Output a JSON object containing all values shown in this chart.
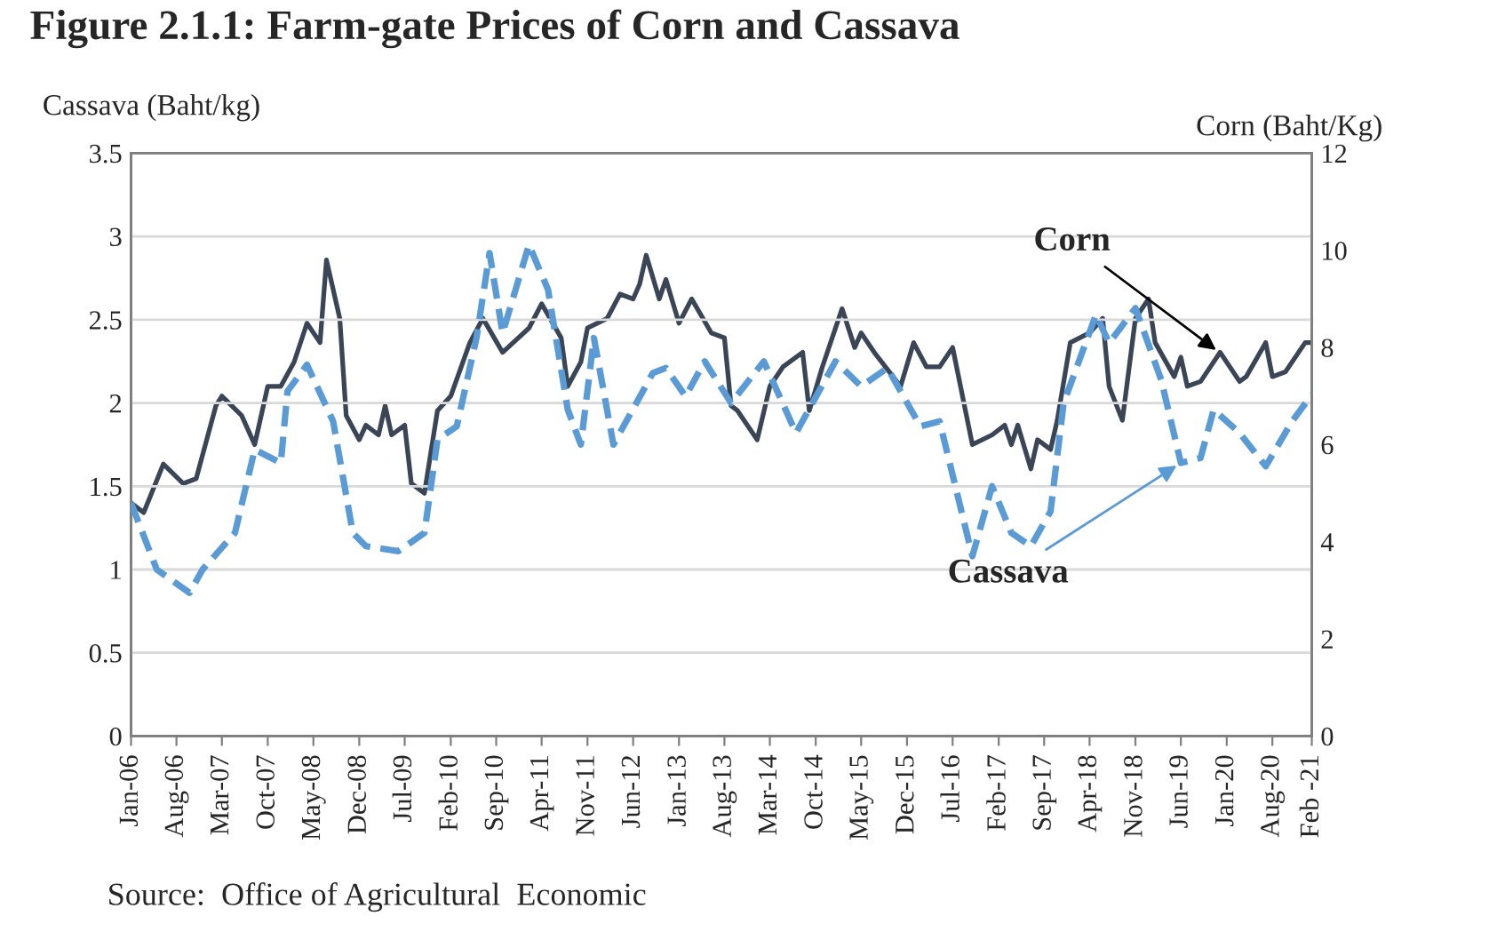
{
  "chart_data": {
    "type": "line",
    "title": "Figure 2.1.1: Farm-gate Prices of Corn and Cassava",
    "ylabel": "Cassava (Baht/kg)",
    "y2label": "Corn (Baht/Kg)",
    "annotations": [
      {
        "text": "Corn",
        "x": "2019-12",
        "y": 2.3
      },
      {
        "text": "Cassava",
        "x": "2019-06",
        "y": 1.64
      },
      "Source:  Office of Agricultural  Economic"
    ],
    "series": [
      {
        "color": "#5b9bd5",
        "line_style": "dashed",
        "x": [
          "2006-01",
          "2006-05",
          "2006-10",
          "2006-12",
          "2007-05",
          "2007-08",
          "2007-12",
          "2008-01",
          "2008-04",
          "2008-08",
          "2008-11",
          "2009-01",
          "2009-06",
          "2009-10",
          "2009-12",
          "2010-03",
          "2010-06",
          "2010-08",
          "2010-10",
          "2011-02",
          "2011-05",
          "2011-08",
          "2011-10",
          "2011-12",
          "2012-03",
          "2012-09",
          "2012-11",
          "2013-02",
          "2013-05",
          "2013-09",
          "2014-02",
          "2014-07",
          "2015-01",
          "2015-05",
          "2015-09",
          "2016-02",
          "2016-05",
          "2016-10",
          "2017-01",
          "2017-04",
          "2017-07",
          "2017-10",
          "2017-12",
          "2018-05",
          "2018-07",
          "2018-11",
          "2019-03",
          "2019-06",
          "2019-09",
          "2019-11",
          "2020-03",
          "2020-07",
          "2020-11",
          "2021-02"
        ],
        "values": [
          1.4,
          1.0,
          0.86,
          1.0,
          1.22,
          1.72,
          1.64,
          2.07,
          2.23,
          1.89,
          1.22,
          1.14,
          1.11,
          1.22,
          1.78,
          1.86,
          2.39,
          2.9,
          2.42,
          2.95,
          2.68,
          1.96,
          1.75,
          2.39,
          1.75,
          2.18,
          2.21,
          2.04,
          2.25,
          2.0,
          2.25,
          1.82,
          2.25,
          2.1,
          2.21,
          1.86,
          1.89,
          1.08,
          1.5,
          1.22,
          1.14,
          1.35,
          2.0,
          2.53,
          2.36,
          2.57,
          2.14,
          1.64,
          1.67,
          1.96,
          1.82,
          1.62,
          1.89,
          2.05
        ]
      },
      {
        "color": "#3a4556",
        "line_style": "solid",
        "axis": "y2",
        "x": [
          "2006-01",
          "2006-03",
          "2006-06",
          "2006-09",
          "2006-11",
          "2007-02",
          "2007-03",
          "2007-06",
          "2007-08",
          "2007-10",
          "2007-12",
          "2008-02",
          "2008-04",
          "2008-06",
          "2008-07",
          "2008-09",
          "2008-10",
          "2008-12",
          "2009-01",
          "2009-03",
          "2009-04",
          "2009-05",
          "2009-07",
          "2009-08",
          "2009-10",
          "2009-12",
          "2010-02",
          "2010-05",
          "2010-07",
          "2010-10",
          "2011-02",
          "2011-04",
          "2011-07",
          "2011-08",
          "2011-10",
          "2011-11",
          "2012-02",
          "2012-04",
          "2012-06",
          "2012-07",
          "2012-08",
          "2012-10",
          "2012-11",
          "2013-01",
          "2013-03",
          "2013-06",
          "2013-08",
          "2013-09",
          "2013-10",
          "2014-01",
          "2014-03",
          "2014-05",
          "2014-08",
          "2014-09",
          "2014-11",
          "2015-02",
          "2015-04",
          "2015-05",
          "2015-07",
          "2015-11",
          "2016-01",
          "2016-03",
          "2016-05",
          "2016-07",
          "2016-10",
          "2017-01",
          "2017-03",
          "2017-04",
          "2017-05",
          "2017-07",
          "2017-08",
          "2017-10",
          "2017-11",
          "2018-01",
          "2018-04",
          "2018-06",
          "2018-07",
          "2018-09",
          "2018-11",
          "2019-01",
          "2019-02",
          "2019-05",
          "2019-06",
          "2019-07",
          "2019-09",
          "2019-12",
          "2020-03",
          "2020-04",
          "2020-07",
          "2020-08",
          "2020-10",
          "2021-01",
          "2021-02"
        ],
        "values": [
          4.8,
          4.6,
          5.6,
          5.2,
          5.3,
          6.8,
          7.0,
          6.6,
          6.0,
          7.2,
          7.2,
          7.7,
          8.5,
          8.1,
          9.8,
          8.6,
          6.6,
          6.1,
          6.4,
          6.2,
          6.8,
          6.2,
          6.4,
          5.2,
          5.0,
          6.7,
          7.0,
          8.1,
          8.6,
          7.9,
          8.4,
          8.9,
          8.2,
          7.2,
          7.7,
          8.4,
          8.6,
          9.1,
          9.0,
          9.3,
          9.9,
          9.0,
          9.4,
          8.5,
          9.0,
          8.3,
          8.2,
          6.8,
          6.7,
          6.1,
          7.2,
          7.6,
          7.9,
          6.7,
          7.6,
          8.8,
          8.0,
          8.3,
          7.9,
          7.2,
          8.1,
          7.6,
          7.6,
          8.0,
          6.0,
          6.2,
          6.4,
          6.0,
          6.4,
          5.5,
          6.1,
          5.9,
          6.5,
          8.1,
          8.3,
          8.6,
          7.2,
          6.5,
          8.6,
          9.0,
          8.1,
          7.4,
          7.8,
          7.2,
          7.3,
          7.9,
          7.3,
          7.4,
          8.1,
          7.4,
          7.5,
          8.1,
          8.1
        ]
      }
    ],
    "xlim": [
      "2006-01",
      "2021-02"
    ],
    "xticks": [
      {
        "value": "2006-01",
        "label": "Jan-06"
      },
      {
        "value": "2006-08",
        "label": "Aug-06"
      },
      {
        "value": "2007-03",
        "label": "Mar-07"
      },
      {
        "value": "2007-10",
        "label": "Oct-07"
      },
      {
        "value": "2008-05",
        "label": "May-08"
      },
      {
        "value": "2008-12",
        "label": "Dec-08"
      },
      {
        "value": "2009-07",
        "label": "Jul-09"
      },
      {
        "value": "2010-02",
        "label": "Feb-10"
      },
      {
        "value": "2010-09",
        "label": "Sep-10"
      },
      {
        "value": "2011-04",
        "label": "Apr-11"
      },
      {
        "value": "2011-11",
        "label": "Nov-11"
      },
      {
        "value": "2012-06",
        "label": "Jun-12"
      },
      {
        "value": "2013-01",
        "label": "Jan-13"
      },
      {
        "value": "2013-08",
        "label": "Aug-13"
      },
      {
        "value": "2014-03",
        "label": "Mar-14"
      },
      {
        "value": "2014-10",
        "label": "Oct-14"
      },
      {
        "value": "2015-05",
        "label": "May-15"
      },
      {
        "value": "2015-12",
        "label": "Dec-15"
      },
      {
        "value": "2016-07",
        "label": "Jul-16"
      },
      {
        "value": "2017-02",
        "label": "Feb-17"
      },
      {
        "value": "2017-09",
        "label": "Sep-17"
      },
      {
        "value": "2018-04",
        "label": "Apr-18"
      },
      {
        "value": "2018-11",
        "label": "Nov-18"
      },
      {
        "value": "2019-06",
        "label": "Jun-19"
      },
      {
        "value": "2020-01",
        "label": "Jan-20"
      },
      {
        "value": "2020-08",
        "label": "Aug-20"
      },
      {
        "value": "2021-02",
        "label": "Feb -21"
      }
    ],
    "ylim": [
      0,
      3.5
    ],
    "yticks": [
      0,
      0.5,
      1,
      1.5,
      2,
      2.5,
      3,
      3.5
    ],
    "y2lim": [
      0,
      12
    ],
    "y2ticks": [
      0,
      2,
      4,
      6,
      8,
      10,
      12
    ],
    "grid": "y",
    "legend": false
  }
}
